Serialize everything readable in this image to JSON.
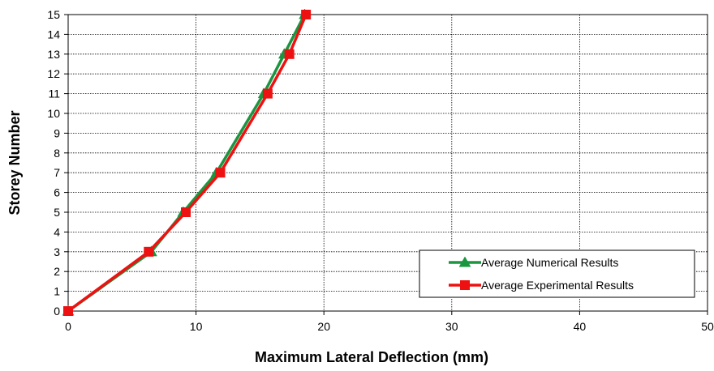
{
  "chart_data": {
    "type": "line",
    "xlabel": "Maximum Lateral Deflection (mm)",
    "ylabel": "Storey Number",
    "xlim": [
      0,
      50
    ],
    "ylim": [
      0,
      15
    ],
    "xticks": [
      0,
      10,
      20,
      30,
      40,
      50
    ],
    "yticks": [
      0,
      1,
      2,
      3,
      4,
      5,
      6,
      7,
      8,
      9,
      10,
      11,
      12,
      13,
      14,
      15
    ],
    "grid": true,
    "legend_position": "bottom-right",
    "series": [
      {
        "name": "Average Numerical Results",
        "color": "#1a9641",
        "marker": "triangle",
        "points": [
          [
            0,
            0
          ],
          [
            6.5,
            3
          ],
          [
            9.0,
            5
          ],
          [
            11.6,
            7
          ],
          [
            15.3,
            11
          ],
          [
            16.9,
            13
          ],
          [
            18.5,
            15
          ]
        ]
      },
      {
        "name": "Average Experimental Results",
        "color": "#ee1111",
        "marker": "square",
        "points": [
          [
            0,
            0
          ],
          [
            6.3,
            3
          ],
          [
            9.2,
            5
          ],
          [
            11.9,
            7
          ],
          [
            15.6,
            11
          ],
          [
            17.3,
            13
          ],
          [
            18.6,
            15
          ]
        ]
      }
    ]
  }
}
